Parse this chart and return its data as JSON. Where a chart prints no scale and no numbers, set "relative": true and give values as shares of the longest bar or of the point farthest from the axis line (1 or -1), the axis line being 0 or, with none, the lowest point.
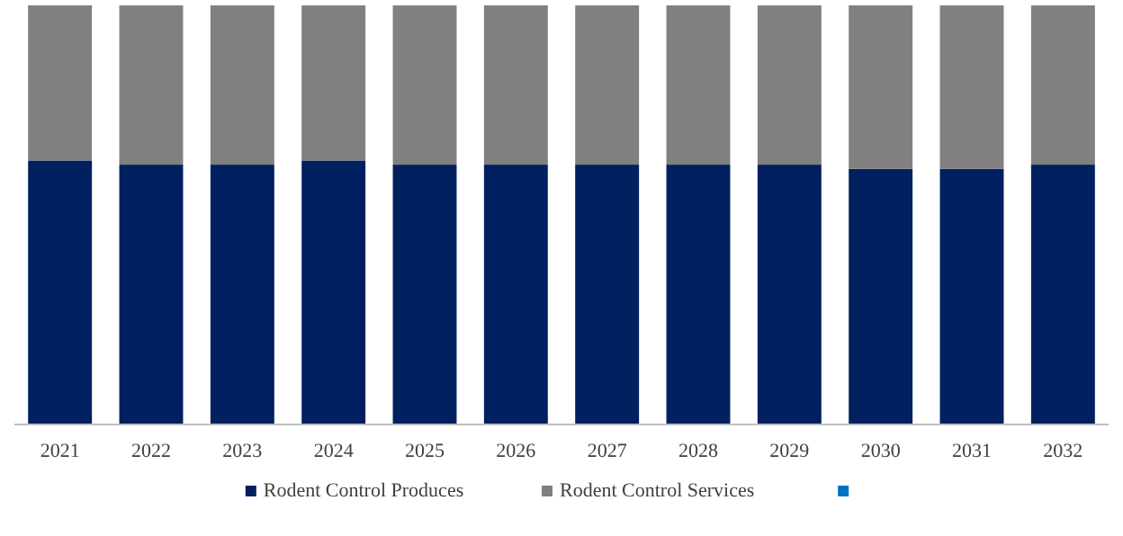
{
  "chart_data": {
    "type": "bar",
    "stacked": true,
    "relative": true,
    "legend": "bottom",
    "categories": [
      "2021",
      "2022",
      "2023",
      "2024",
      "2025",
      "2026",
      "2027",
      "2028",
      "2029",
      "2030",
      "2031",
      "2032"
    ],
    "series": [
      {
        "name": "Rodent Control Produces",
        "color": "#002060",
        "values": [
          0.63,
          0.62,
          0.62,
          0.63,
          0.62,
          0.62,
          0.62,
          0.62,
          0.62,
          0.61,
          0.61,
          0.62
        ]
      },
      {
        "name": "Rodent Control Services",
        "color": "#808080",
        "values": [
          0.37,
          0.38,
          0.38,
          0.37,
          0.38,
          0.38,
          0.38,
          0.38,
          0.38,
          0.39,
          0.39,
          0.38
        ]
      },
      {
        "color": "#0070c0",
        "values": [
          null,
          null,
          null,
          null,
          null,
          null,
          null,
          null,
          null,
          null,
          null,
          null
        ]
      }
    ]
  }
}
